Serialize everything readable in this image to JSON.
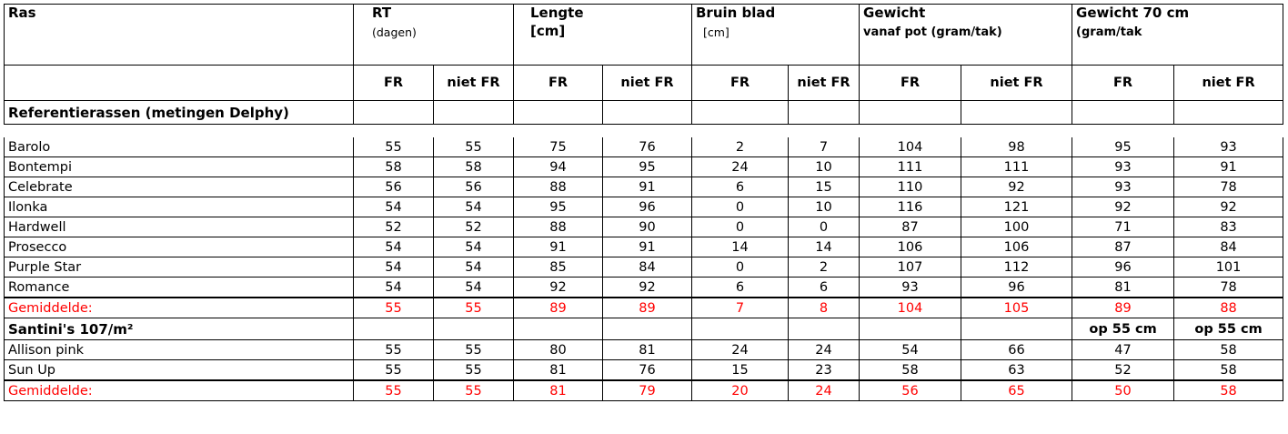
{
  "columns": {
    "ras": "Ras",
    "rt": {
      "title": "RT",
      "sub": "(dagen)"
    },
    "lengte": {
      "title": "Lengte",
      "sub": "[cm]"
    },
    "bruin": {
      "title": "Bruin blad",
      "sub": "[cm]"
    },
    "gewicht": {
      "title": "Gewicht",
      "sub": "vanaf pot (gram/tak)"
    },
    "gewicht70": {
      "title": "Gewicht 70 cm",
      "sub": "(gram/tak"
    },
    "fr": "FR",
    "niet_fr": "niet FR"
  },
  "section1": {
    "title": "Referentierassen (metingen Delphy)",
    "rows": [
      [
        "Barolo",
        "55",
        "55",
        "75",
        "76",
        "2",
        "7",
        "104",
        "98",
        "95",
        "93"
      ],
      [
        "Bontempi",
        "58",
        "58",
        "94",
        "95",
        "24",
        "10",
        "111",
        "111",
        "93",
        "91"
      ],
      [
        "Celebrate",
        "56",
        "56",
        "88",
        "91",
        "6",
        "15",
        "110",
        "92",
        "93",
        "78"
      ],
      [
        "Ilonka",
        "54",
        "54",
        "95",
        "96",
        "0",
        "10",
        "116",
        "121",
        "92",
        "92"
      ],
      [
        "Hardwell",
        "52",
        "52",
        "88",
        "90",
        "0",
        "0",
        "87",
        "100",
        "71",
        "83"
      ],
      [
        "Prosecco",
        "54",
        "54",
        "91",
        "91",
        "14",
        "14",
        "106",
        "106",
        "87",
        "84"
      ],
      [
        "Purple Star",
        "54",
        "54",
        "85",
        "84",
        "0",
        "2",
        "107",
        "112",
        "96",
        "101"
      ],
      [
        "Romance",
        "54",
        "54",
        "92",
        "92",
        "6",
        "6",
        "93",
        "96",
        "81",
        "78"
      ]
    ],
    "avg": [
      "Gemiddelde:",
      "55",
      "55",
      "89",
      "89",
      "7",
      "8",
      "104",
      "105",
      "89",
      "88"
    ]
  },
  "section2": {
    "title": "Santini's 107/m²",
    "op_fr": "op 55 cm",
    "op_nietfr": "op 55 cm",
    "rows": [
      [
        "Allison pink",
        "55",
        "55",
        "80",
        "81",
        "24",
        "24",
        "54",
        "66",
        "47",
        "58"
      ],
      [
        "Sun Up",
        "55",
        "55",
        "81",
        "76",
        "15",
        "23",
        "58",
        "63",
        "52",
        "58"
      ]
    ],
    "avg": [
      "Gemiddelde:",
      "55",
      "55",
      "81",
      "79",
      "20",
      "24",
      "56",
      "65",
      "50",
      "58"
    ]
  },
  "colors": {
    "average": "#ff0000",
    "border": "#000000"
  }
}
